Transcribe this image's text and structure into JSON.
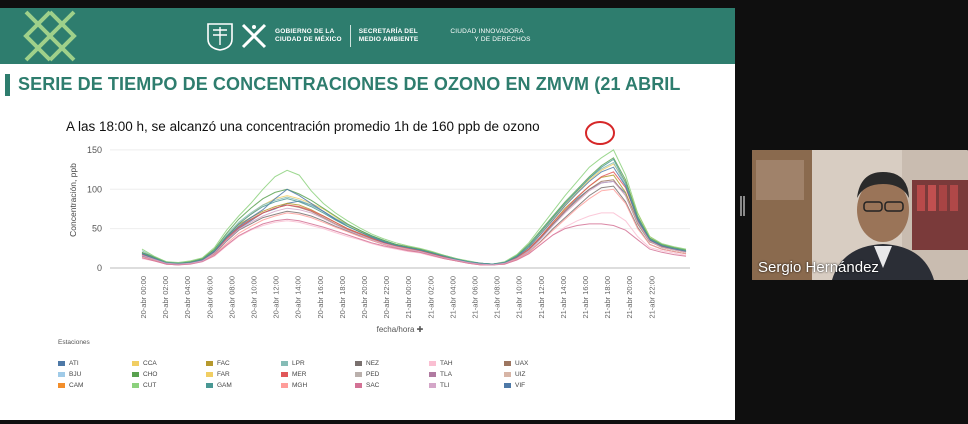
{
  "slide": {
    "header": {
      "gov_line1": "GOBIERNO DE LA",
      "gov_line2": "CIUDAD DE MÉXICO",
      "sec_line1": "SECRETARÍA DEL",
      "sec_line2": "MEDIO AMBIENTE",
      "city_line1": "CIUDAD INNOVADORA",
      "city_line2": "Y DE DERECHOS"
    },
    "title": "SERIE DE TIEMPO DE CONCENTRACIONES DE OZONO EN ZMVM (21 ABRIL",
    "annotation": "A las 18:00 h, se alcanzó una concentración promedio 1h de 160 ppb de ozono",
    "legend_title": "Estaciones",
    "legend": [
      {
        "code": "ATI",
        "color": "#4e79a7"
      },
      {
        "code": "CCA",
        "color": "#f1ce63"
      },
      {
        "code": "FAC",
        "color": "#b6992d"
      },
      {
        "code": "LPR",
        "color": "#86bcb6"
      },
      {
        "code": "NEZ",
        "color": "#79706e"
      },
      {
        "code": "TAH",
        "color": "#fabfd2"
      },
      {
        "code": "UAX",
        "color": "#9d7660"
      },
      {
        "code": "BJU",
        "color": "#a0cbe8"
      },
      {
        "code": "CHO",
        "color": "#59a14f"
      },
      {
        "code": "FAR",
        "color": "#f1ce63"
      },
      {
        "code": "MER",
        "color": "#e15759"
      },
      {
        "code": "PED",
        "color": "#bab0ac"
      },
      {
        "code": "TLA",
        "color": "#b07aa1"
      },
      {
        "code": "UIZ",
        "color": "#d7b5a6"
      },
      {
        "code": "CAM",
        "color": "#f28e2b"
      },
      {
        "code": "CUT",
        "color": "#8cd17d"
      },
      {
        "code": "GAM",
        "color": "#499894"
      },
      {
        "code": "MGH",
        "color": "#ff9d9a"
      },
      {
        "code": "SAC",
        "color": "#d37295"
      },
      {
        "code": "TLI",
        "color": "#d4a6c8"
      },
      {
        "code": "VIF",
        "color": "#4e79a7"
      }
    ]
  },
  "chart_data": {
    "type": "line",
    "title": "A las 18:00 h, se alcanzó una concentración promedio 1h de 160 ppb de ozono",
    "xlabel": "fecha/hora",
    "ylabel": "Concentración, ppb",
    "ylim": [
      0,
      160
    ],
    "yticks": [
      0,
      50,
      100,
      150
    ],
    "xticks": [
      "20-abr 00:00",
      "20-abr 02:00",
      "20-abr 04:00",
      "20-abr 06:00",
      "20-abr 08:00",
      "20-abr 10:00",
      "20-abr 12:00",
      "20-abr 14:00",
      "20-abr 16:00",
      "20-abr 18:00",
      "20-abr 20:00",
      "20-abr 22:00",
      "21-abr 00:00",
      "21-abr 02:00",
      "21-abr 04:00",
      "21-abr 06:00",
      "21-abr 08:00",
      "21-abr 10:00",
      "21-abr 12:00",
      "21-abr 14:00",
      "21-abr 16:00",
      "21-abr 18:00",
      "21-abr 20:00",
      "21-abr 22:00"
    ],
    "series": [
      {
        "name": "ATI",
        "color": "#4e79a7",
        "values": [
          15,
          10,
          5,
          4,
          6,
          10,
          20,
          35,
          50,
          60,
          70,
          75,
          82,
          85,
          80,
          72,
          62,
          55,
          48,
          40,
          33,
          28,
          25,
          22,
          18,
          14,
          10,
          7,
          5,
          4,
          6,
          12,
          22,
          38,
          55,
          72,
          88,
          100,
          108,
          110,
          95,
          60,
          35,
          28,
          25,
          22
        ]
      },
      {
        "name": "CCA",
        "color": "#f1ce63",
        "values": [
          20,
          13,
          7,
          6,
          8,
          12,
          24,
          40,
          56,
          68,
          80,
          88,
          92,
          88,
          82,
          75,
          65,
          55,
          47,
          40,
          34,
          30,
          27,
          24,
          20,
          15,
          11,
          8,
          6,
          5,
          7,
          14,
          26,
          44,
          62,
          80,
          96,
          112,
          124,
          132,
          110,
          70,
          40,
          30,
          26,
          22
        ]
      },
      {
        "name": "FAC",
        "color": "#b6992d",
        "values": [
          18,
          12,
          6,
          5,
          7,
          10,
          22,
          40,
          55,
          64,
          72,
          78,
          82,
          80,
          74,
          66,
          58,
          50,
          44,
          38,
          32,
          28,
          24,
          22,
          18,
          14,
          10,
          7,
          5,
          4,
          6,
          13,
          24,
          40,
          58,
          76,
          90,
          104,
          115,
          118,
          96,
          58,
          34,
          26,
          23,
          20
        ]
      },
      {
        "name": "LPR",
        "color": "#86bcb6",
        "values": [
          22,
          14,
          7,
          6,
          8,
          11,
          23,
          42,
          58,
          70,
          80,
          86,
          90,
          86,
          80,
          72,
          63,
          55,
          48,
          41,
          35,
          30,
          26,
          23,
          19,
          15,
          11,
          8,
          6,
          5,
          7,
          15,
          28,
          46,
          64,
          82,
          98,
          114,
          126,
          134,
          105,
          64,
          38,
          29,
          25,
          22
        ]
      },
      {
        "name": "NEZ",
        "color": "#79706e",
        "values": [
          16,
          11,
          6,
          5,
          6,
          9,
          18,
          34,
          48,
          56,
          64,
          68,
          72,
          70,
          66,
          60,
          53,
          47,
          41,
          35,
          30,
          26,
          23,
          20,
          17,
          13,
          9,
          7,
          5,
          4,
          6,
          11,
          20,
          34,
          50,
          64,
          78,
          92,
          102,
          104,
          84,
          52,
          30,
          24,
          21,
          18
        ]
      },
      {
        "name": "TAH",
        "color": "#fabfd2",
        "values": [
          12,
          9,
          5,
          4,
          5,
          8,
          15,
          28,
          40,
          48,
          54,
          58,
          60,
          58,
          54,
          50,
          45,
          40,
          36,
          31,
          27,
          24,
          21,
          19,
          15,
          12,
          9,
          6,
          4,
          4,
          5,
          10,
          18,
          30,
          42,
          52,
          60,
          66,
          70,
          70,
          60,
          40,
          26,
          22,
          19,
          16
        ]
      },
      {
        "name": "UAX",
        "color": "#9d7660",
        "values": [
          19,
          13,
          7,
          6,
          7,
          11,
          21,
          38,
          52,
          62,
          70,
          76,
          80,
          77,
          72,
          64,
          56,
          49,
          43,
          37,
          32,
          28,
          25,
          22,
          18,
          14,
          10,
          7,
          5,
          4,
          6,
          12,
          23,
          39,
          56,
          72,
          86,
          100,
          110,
          112,
          92,
          56,
          33,
          27,
          24,
          21
        ]
      },
      {
        "name": "CHO",
        "color": "#59a14f",
        "values": [
          20,
          14,
          8,
          6,
          8,
          12,
          24,
          44,
          62,
          76,
          88,
          96,
          100,
          94,
          86,
          76,
          66,
          56,
          48,
          41,
          35,
          30,
          27,
          24,
          20,
          16,
          12,
          8,
          6,
          5,
          7,
          16,
          30,
          48,
          66,
          84,
          100,
          116,
          130,
          140,
          112,
          66,
          38,
          30,
          26,
          23
        ]
      },
      {
        "name": "CUT",
        "color": "#8cd17d",
        "values": [
          24,
          15,
          8,
          7,
          9,
          13,
          26,
          48,
          66,
          82,
          100,
          116,
          124,
          118,
          98,
          82,
          70,
          60,
          51,
          43,
          37,
          32,
          28,
          25,
          21,
          16,
          12,
          9,
          6,
          5,
          8,
          17,
          32,
          52,
          72,
          92,
          110,
          128,
          140,
          150,
          118,
          70,
          40,
          31,
          27,
          24
        ]
      },
      {
        "name": "MER",
        "color": "#e15759",
        "values": [
          17,
          12,
          6,
          5,
          7,
          10,
          20,
          37,
          51,
          61,
          70,
          76,
          80,
          78,
          73,
          66,
          58,
          50,
          44,
          38,
          32,
          28,
          25,
          22,
          18,
          14,
          10,
          7,
          5,
          4,
          6,
          13,
          24,
          40,
          58,
          74,
          90,
          104,
          116,
          122,
          102,
          62,
          36,
          28,
          24,
          21
        ]
      },
      {
        "name": "MGH",
        "color": "#ff9d9a",
        "values": [
          14,
          10,
          5,
          4,
          6,
          9,
          17,
          31,
          44,
          53,
          61,
          66,
          70,
          68,
          64,
          58,
          52,
          46,
          40,
          35,
          30,
          26,
          23,
          20,
          16,
          12,
          9,
          6,
          4,
          4,
          5,
          11,
          20,
          33,
          48,
          62,
          76,
          88,
          98,
          100,
          82,
          50,
          30,
          24,
          21,
          18
        ]
      },
      {
        "name": "VIF",
        "color": "#4e79a7",
        "values": [
          18,
          12,
          6,
          5,
          7,
          10,
          21,
          39,
          53,
          64,
          74,
          88,
          100,
          92,
          82,
          72,
          62,
          53,
          46,
          39,
          33,
          29,
          26,
          23,
          19,
          15,
          11,
          8,
          6,
          5,
          7,
          14,
          26,
          43,
          61,
          79,
          95,
          110,
          122,
          128,
          104,
          62,
          36,
          28,
          24,
          21
        ]
      },
      {
        "name": "GAM",
        "color": "#499894",
        "values": [
          19,
          13,
          7,
          6,
          7,
          11,
          22,
          40,
          56,
          68,
          78,
          84,
          88,
          84,
          78,
          70,
          61,
          53,
          46,
          40,
          34,
          29,
          26,
          23,
          19,
          15,
          11,
          8,
          6,
          5,
          7,
          15,
          28,
          46,
          64,
          82,
          98,
          114,
          128,
          138,
          108,
          64,
          37,
          29,
          25,
          22
        ]
      },
      {
        "name": "SAC",
        "color": "#d37295",
        "values": [
          13,
          9,
          5,
          4,
          5,
          8,
          16,
          29,
          41,
          49,
          56,
          60,
          62,
          60,
          56,
          52,
          47,
          42,
          37,
          32,
          28,
          25,
          22,
          20,
          16,
          12,
          9,
          6,
          4,
          4,
          5,
          10,
          18,
          30,
          42,
          50,
          54,
          56,
          56,
          54,
          48,
          36,
          24,
          20,
          17,
          15
        ]
      },
      {
        "name": "TLI",
        "color": "#d4a6c8",
        "values": [
          16,
          11,
          6,
          5,
          6,
          9,
          19,
          35,
          49,
          58,
          66,
          72,
          76,
          74,
          70,
          63,
          55,
          48,
          42,
          36,
          31,
          27,
          24,
          21,
          17,
          13,
          10,
          7,
          5,
          4,
          6,
          12,
          22,
          37,
          54,
          70,
          84,
          98,
          108,
          110,
          92,
          58,
          34,
          26,
          23,
          20
        ]
      }
    ]
  }
}
